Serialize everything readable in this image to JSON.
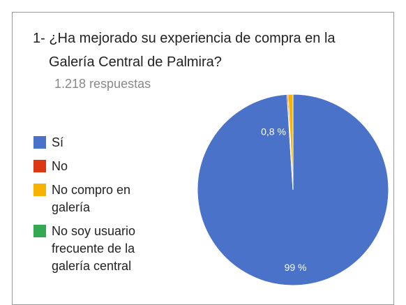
{
  "chart_data": {
    "type": "pie",
    "title": "1- ¿Ha mejorado su experiencia de compra en la Galería Central de Palmira?",
    "subtitle": "1.218 respuestas",
    "categories": [
      "Sí",
      "No",
      "No compro en galería",
      "No soy usuario frecuente de la galería central"
    ],
    "values": [
      99,
      0.2,
      0.8,
      0
    ],
    "value_labels": [
      "99 %",
      null,
      "0,8 %",
      null
    ],
    "colors": [
      "#4a72c8",
      "#dc3912",
      "#f6b400",
      "#34a853"
    ],
    "legend": "left"
  }
}
